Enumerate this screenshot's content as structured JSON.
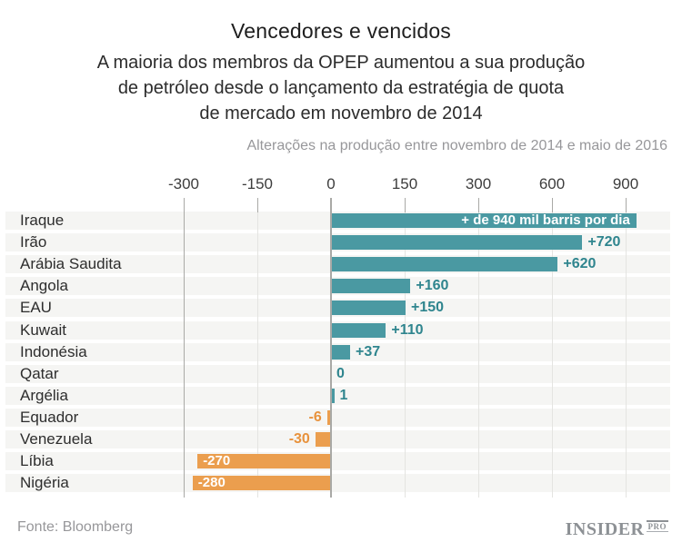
{
  "title": "Vencedores e vencidos",
  "subtitle_lines": [
    "A maioria dos membros da OPEP aumentou a sua produção",
    "de petróleo desde o lançamento da estratégia de quota",
    "de mercado em novembro de 2014"
  ],
  "axis_note": "Alterações na produção entre novembro de 2014 e maio de 2016",
  "footer": {
    "source": "Fonte: Bloomberg",
    "logo_main": "INSIDER",
    "logo_sub": "PRO"
  },
  "colors": {
    "positive_bar": "#4a99a2",
    "negative_bar": "#eb9e4e",
    "positive_text": "#2f858e",
    "negative_text": "#e8923c",
    "inside_label_text": "#ffffff",
    "row_band": "#f5f5f3",
    "grid_line": "#e4e4e1",
    "zero_line": "#a9a9a6"
  },
  "chart_data": {
    "type": "bar",
    "orientation": "horizontal",
    "title": "Vencedores e vencidos",
    "xlabel": "Alterações na produção entre novembro de 2014 e maio de 2016 (mil barris por dia)",
    "ylabel": "",
    "legend": false,
    "grid": true,
    "axis_scale": "piecewise-linear: equal pixel spacing between consecutive ticks",
    "axis_ticks": [
      -300,
      -150,
      0,
      150,
      300,
      600,
      900
    ],
    "axis_tick_labels": [
      "-300",
      "-150",
      "0",
      "150",
      "300",
      "600",
      "900"
    ],
    "categories": [
      "Iraque",
      "Irão",
      "Arábia Saudita",
      "Angola",
      "EAU",
      "Kuwait",
      "Indonésia",
      "Qatar",
      "Argélia",
      "Equador",
      "Venezuela",
      "Líbia",
      "Nigéria"
    ],
    "values": [
      940,
      720,
      620,
      160,
      150,
      110,
      37,
      0,
      1,
      -6,
      -30,
      -270,
      -280
    ],
    "bar_labels": [
      "+ de 940 mil barris por dia",
      "+720",
      "+620",
      "+160",
      "+150",
      "+110",
      "+37",
      "0",
      "1",
      "-6",
      "-30",
      "-270",
      "-280"
    ],
    "label_placement": [
      "inside-end",
      "outside-end",
      "outside-end",
      "outside-end",
      "outside-end",
      "outside-end",
      "outside-end",
      "outside-end",
      "outside-end",
      "outside-start",
      "outside-start",
      "inside-start",
      "inside-start"
    ]
  }
}
